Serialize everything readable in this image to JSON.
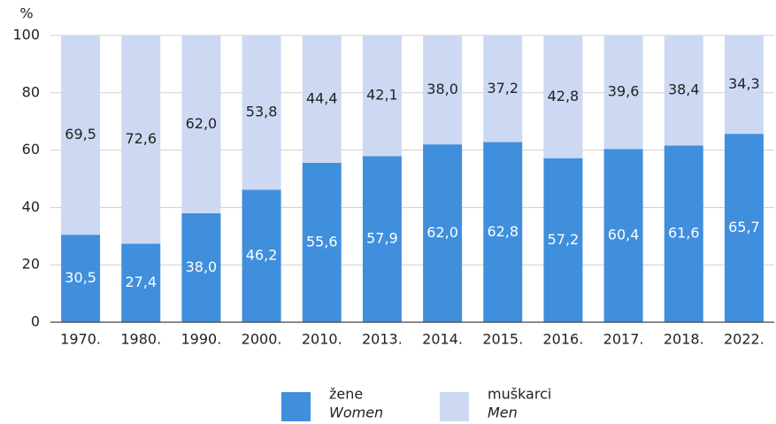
{
  "chart_data": {
    "type": "stacked_bar",
    "ylabel": "%",
    "categories": [
      "1970.",
      "1980.",
      "1990.",
      "2000.",
      "2010.",
      "2013.",
      "2014.",
      "2015.",
      "2016.",
      "2017.",
      "2018.",
      "2022."
    ],
    "series": [
      {
        "name": "žene",
        "subname": "Women",
        "color": "#3f8fdd",
        "values": [
          30.5,
          27.4,
          38.0,
          46.2,
          55.6,
          57.9,
          62.0,
          62.8,
          57.2,
          60.4,
          61.6,
          65.7
        ],
        "value_labels": [
          "30,5",
          "27,4",
          "38,0",
          "46,2",
          "55,6",
          "57,9",
          "62,0",
          "62,8",
          "57,2",
          "60,4",
          "61,6",
          "65,7"
        ]
      },
      {
        "name": "muškarci",
        "subname": "Men",
        "color": "#cdd9f3",
        "values": [
          69.5,
          72.6,
          62.0,
          53.8,
          44.4,
          42.1,
          38.0,
          37.2,
          42.8,
          39.6,
          38.4,
          34.3
        ],
        "value_labels": [
          "69,5",
          "72,6",
          "62,0",
          "53,8",
          "44,4",
          "42,1",
          "38,0",
          "37,2",
          "42,8",
          "39,6",
          "38,4",
          "34,3"
        ]
      }
    ],
    "ylim": [
      0,
      100
    ],
    "yticks": [
      0,
      20,
      40,
      60,
      80,
      100
    ],
    "grid": true
  }
}
